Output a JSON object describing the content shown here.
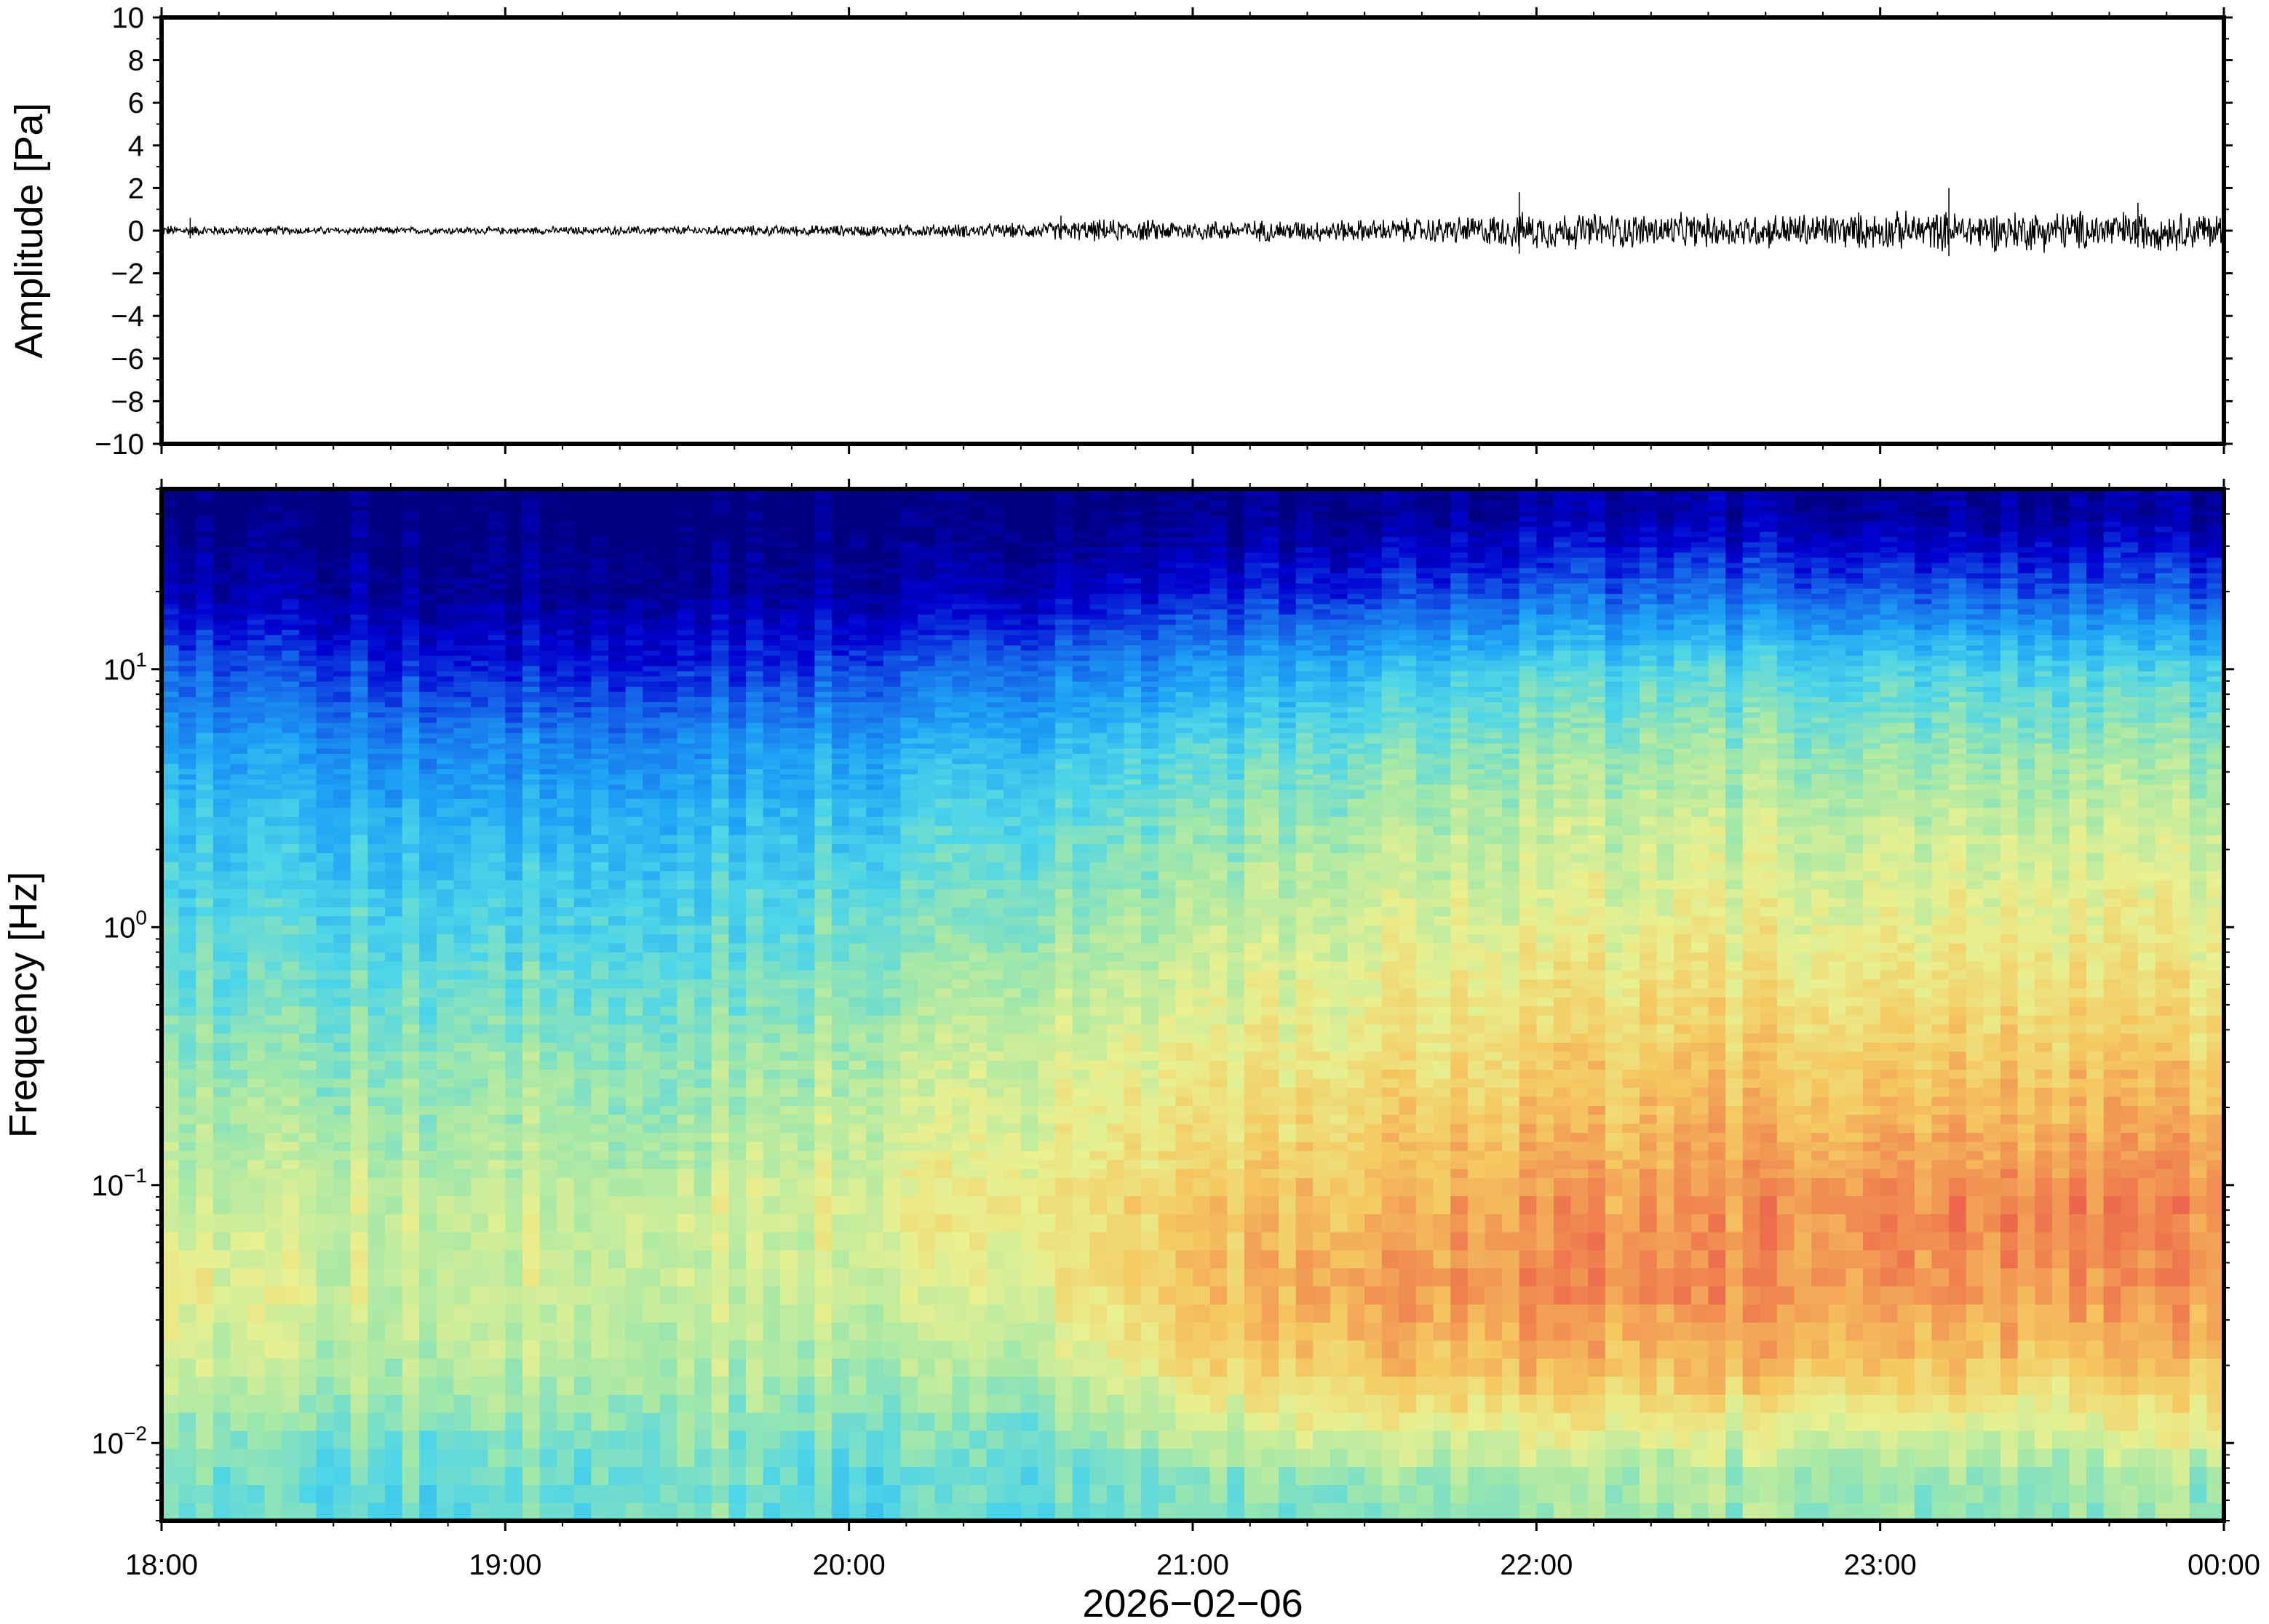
{
  "chart_data": [
    {
      "type": "line",
      "ylabel": "Amplitude [Pa]",
      "ylim": [
        -10,
        10
      ],
      "yticks": [
        10,
        8,
        6,
        4,
        2,
        0,
        -2,
        -4,
        -6,
        -8,
        -10
      ],
      "ytick_labels": [
        "10",
        "8",
        "6",
        "4",
        "2",
        "0",
        "−2",
        "−4",
        "−6",
        "−8",
        "−10"
      ],
      "xlim": [
        "2026-02-06 18:00",
        "2026-02-07 00:00"
      ],
      "grid": false,
      "series": [
        {
          "color": "#000000",
          "envelope_time": [
            "18:00",
            "18:30",
            "19:00",
            "19:30",
            "20:00",
            "20:30",
            "20:45",
            "21:00",
            "21:30",
            "21:45",
            "22:00",
            "22:30",
            "23:00",
            "23:30",
            "00:00"
          ],
          "envelope_amplitude": [
            0.3,
            0.2,
            0.2,
            0.25,
            0.3,
            0.4,
            0.6,
            0.55,
            0.6,
            0.75,
            1.0,
            0.9,
            1.0,
            1.1,
            1.0
          ],
          "peak_time": [
            "18:05",
            "20:37",
            "21:57",
            "23:12",
            "23:45"
          ],
          "peak_amplitude": [
            0.6,
            0.7,
            1.8,
            2.0,
            1.3
          ]
        }
      ]
    },
    {
      "type": "heatmap",
      "ylabel": "Frequency [Hz]",
      "xlabel": "2026−02−06",
      "yscale": "log",
      "ylim": [
        0.005,
        50
      ],
      "ytick_labels": [
        {
          "value": 10,
          "base": "10",
          "exp": "1"
        },
        {
          "value": 1,
          "base": "10",
          "exp": "0"
        },
        {
          "value": 0.1,
          "base": "10",
          "exp": "−1"
        },
        {
          "value": 0.01,
          "base": "10",
          "exp": "−2"
        }
      ],
      "xticks": [
        "18:00",
        "19:00",
        "20:00",
        "21:00",
        "22:00",
        "23:00",
        "00:00"
      ],
      "colormap": "jet",
      "colormap_stops": [
        "#000080",
        "#0000d0",
        "#1565e8",
        "#1ea5f5",
        "#4dd5e8",
        "#a4e8a8",
        "#e8f090",
        "#f5c860",
        "#f08850",
        "#e84848"
      ],
      "time_bins": [
        "18:00",
        "18:30",
        "19:00",
        "19:30",
        "20:00",
        "20:30",
        "21:00",
        "21:30",
        "22:00",
        "22:30",
        "23:00",
        "23:30",
        "00:00"
      ],
      "freq_bins_hz": [
        0.007,
        0.01,
        0.02,
        0.04,
        0.08,
        0.15,
        0.3,
        0.6,
        1.2,
        2.5,
        5,
        10,
        20,
        40
      ],
      "values": [
        [
          0.5,
          0.47,
          0.48,
          0.52,
          0.47,
          0.48,
          0.5,
          0.52,
          0.55,
          0.56,
          0.55,
          0.54,
          0.55
        ],
        [
          0.55,
          0.5,
          0.52,
          0.54,
          0.5,
          0.5,
          0.58,
          0.62,
          0.64,
          0.63,
          0.63,
          0.62,
          0.64
        ],
        [
          0.64,
          0.58,
          0.6,
          0.6,
          0.58,
          0.58,
          0.72,
          0.78,
          0.8,
          0.8,
          0.8,
          0.78,
          0.79
        ],
        [
          0.7,
          0.63,
          0.63,
          0.63,
          0.63,
          0.65,
          0.77,
          0.84,
          0.88,
          0.87,
          0.88,
          0.87,
          0.86
        ],
        [
          0.63,
          0.62,
          0.62,
          0.64,
          0.66,
          0.7,
          0.76,
          0.8,
          0.86,
          0.86,
          0.9,
          0.9,
          0.88
        ],
        [
          0.6,
          0.57,
          0.58,
          0.58,
          0.62,
          0.66,
          0.71,
          0.75,
          0.8,
          0.82,
          0.84,
          0.84,
          0.83
        ],
        [
          0.55,
          0.53,
          0.55,
          0.55,
          0.58,
          0.63,
          0.67,
          0.7,
          0.75,
          0.77,
          0.78,
          0.78,
          0.76
        ],
        [
          0.5,
          0.48,
          0.49,
          0.5,
          0.53,
          0.58,
          0.62,
          0.66,
          0.7,
          0.71,
          0.72,
          0.72,
          0.7
        ],
        [
          0.46,
          0.44,
          0.44,
          0.45,
          0.48,
          0.52,
          0.57,
          0.62,
          0.65,
          0.66,
          0.67,
          0.67,
          0.66
        ],
        [
          0.42,
          0.38,
          0.37,
          0.39,
          0.42,
          0.46,
          0.51,
          0.56,
          0.6,
          0.61,
          0.62,
          0.62,
          0.6
        ],
        [
          0.35,
          0.3,
          0.29,
          0.31,
          0.34,
          0.38,
          0.44,
          0.49,
          0.54,
          0.55,
          0.55,
          0.55,
          0.53
        ],
        [
          0.24,
          0.18,
          0.15,
          0.17,
          0.2,
          0.25,
          0.3,
          0.37,
          0.44,
          0.45,
          0.45,
          0.45,
          0.42
        ],
        [
          0.09,
          0.05,
          0.04,
          0.05,
          0.06,
          0.08,
          0.12,
          0.16,
          0.22,
          0.23,
          0.23,
          0.22,
          0.2
        ],
        [
          0.0,
          0.0,
          0.0,
          0.0,
          0.0,
          0.0,
          0.0,
          0.02,
          0.05,
          0.05,
          0.05,
          0.05,
          0.04
        ]
      ]
    }
  ]
}
